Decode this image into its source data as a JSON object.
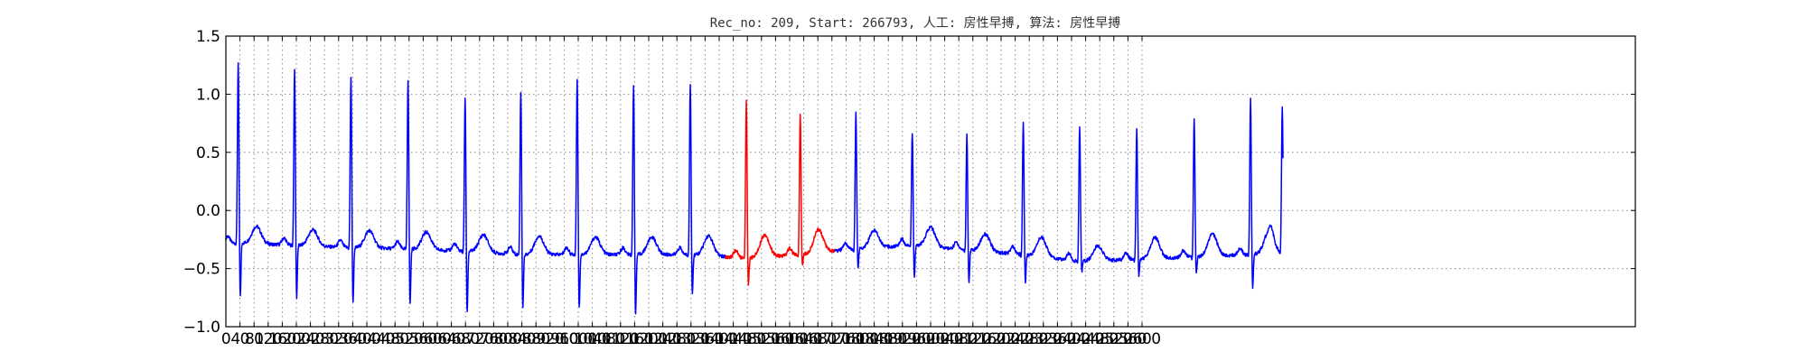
{
  "chart_data": {
    "type": "line",
    "title": "Rec_no: 209, Start: 266793, 人工: 房性早搏, 算法: 房性早搏",
    "xlabel": "",
    "ylabel": "",
    "xlim": [
      0,
      4000
    ],
    "ylim": [
      -1.0,
      1.5
    ],
    "x_tick_step": 40,
    "x_tick_max": 2600,
    "x_tick_labels": [
      "0",
      "40",
      "80",
      "120",
      "160",
      "200",
      "240",
      "280",
      "320",
      "360",
      "400",
      "440",
      "480",
      "520",
      "560",
      "600",
      "640",
      "680",
      "720",
      "760",
      "800",
      "840",
      "880",
      "920",
      "960",
      "1000",
      "1040",
      "1080",
      "1120",
      "1160",
      "1200",
      "1240",
      "1280",
      "1320",
      "1360",
      "1400",
      "1440",
      "1480",
      "1520",
      "1560",
      "1600",
      "1640",
      "1680",
      "1720",
      "1760",
      "1800",
      "1840",
      "1880",
      "1920",
      "1960",
      "2000",
      "2040",
      "2080",
      "2120",
      "2160",
      "2200",
      "2240",
      "2280",
      "2320",
      "2360",
      "2400",
      "2440",
      "2480",
      "2520",
      "2560",
      "2600"
    ],
    "y_ticks": [
      -1.0,
      -0.5,
      0.0,
      0.5,
      1.0,
      1.5
    ],
    "y_tick_labels": [
      "−1.0",
      "−0.5",
      "0.0",
      "0.5",
      "1.0",
      "1.5"
    ],
    "grid": true,
    "signal_end": 3000,
    "beats": [
      {
        "r": 35,
        "peak": 1.28,
        "s": -0.8,
        "base": -0.28,
        "t": 0.1,
        "color": "#0000ff"
      },
      {
        "r": 195,
        "peak": 1.22,
        "s": -0.8,
        "base": -0.3,
        "t": 0.09,
        "color": "#0000ff"
      },
      {
        "r": 355,
        "peak": 1.16,
        "s": -0.85,
        "base": -0.32,
        "t": 0.1,
        "color": "#0000ff"
      },
      {
        "r": 517,
        "peak": 1.14,
        "s": -0.85,
        "base": -0.33,
        "t": 0.1,
        "color": "#0000ff"
      },
      {
        "r": 679,
        "peak": 0.98,
        "s": -0.92,
        "base": -0.35,
        "t": 0.1,
        "color": "#0000ff"
      },
      {
        "r": 837,
        "peak": 1.04,
        "s": -0.88,
        "base": -0.38,
        "t": 0.11,
        "color": "#0000ff"
      },
      {
        "r": 997,
        "peak": 1.14,
        "s": -0.89,
        "base": -0.38,
        "t": 0.1,
        "color": "#0000ff"
      },
      {
        "r": 1157,
        "peak": 1.08,
        "s": -0.94,
        "base": -0.38,
        "t": 0.1,
        "color": "#0000ff"
      },
      {
        "r": 1318,
        "peak": 1.1,
        "s": -0.75,
        "base": -0.38,
        "t": 0.12,
        "color": "#0000ff"
      },
      {
        "r": 1477,
        "peak": 0.94,
        "s": -0.67,
        "base": -0.41,
        "t": 0.14,
        "color": "#ff0000"
      },
      {
        "r": 1630,
        "peak": 0.84,
        "s": -0.5,
        "base": -0.38,
        "t": 0.15,
        "color": "#ff0000"
      },
      {
        "r": 1788,
        "peak": 0.84,
        "s": -0.52,
        "base": -0.33,
        "t": 0.1,
        "color": "#0000ff"
      },
      {
        "r": 1948,
        "peak": 0.68,
        "s": -0.6,
        "base": -0.3,
        "t": 0.12,
        "color": "#0000ff"
      },
      {
        "r": 2103,
        "peak": 0.66,
        "s": -0.65,
        "base": -0.34,
        "t": 0.1,
        "color": "#0000ff"
      },
      {
        "r": 2263,
        "peak": 0.77,
        "s": -0.65,
        "base": -0.38,
        "t": 0.12,
        "color": "#0000ff"
      },
      {
        "r": 2423,
        "peak": 0.72,
        "s": -0.55,
        "base": -0.44,
        "t": 0.08,
        "color": "#0000ff"
      },
      {
        "r": 2585,
        "peak": 0.71,
        "s": -0.59,
        "base": -0.42,
        "t": 0.13,
        "color": "#0000ff"
      },
      {
        "r": 2748,
        "peak": 0.79,
        "s": -0.58,
        "base": -0.4,
        "t": 0.14,
        "color": "#0000ff"
      },
      {
        "r": 2908,
        "peak": 0.96,
        "s": -0.7,
        "base": -0.38,
        "t": 0.14,
        "color": "#0000ff"
      },
      {
        "r": 2998,
        "peak": 0.88,
        "s": -0.36,
        "base": -0.36,
        "t": 0.0,
        "color": "#0000ff"
      }
    ]
  }
}
